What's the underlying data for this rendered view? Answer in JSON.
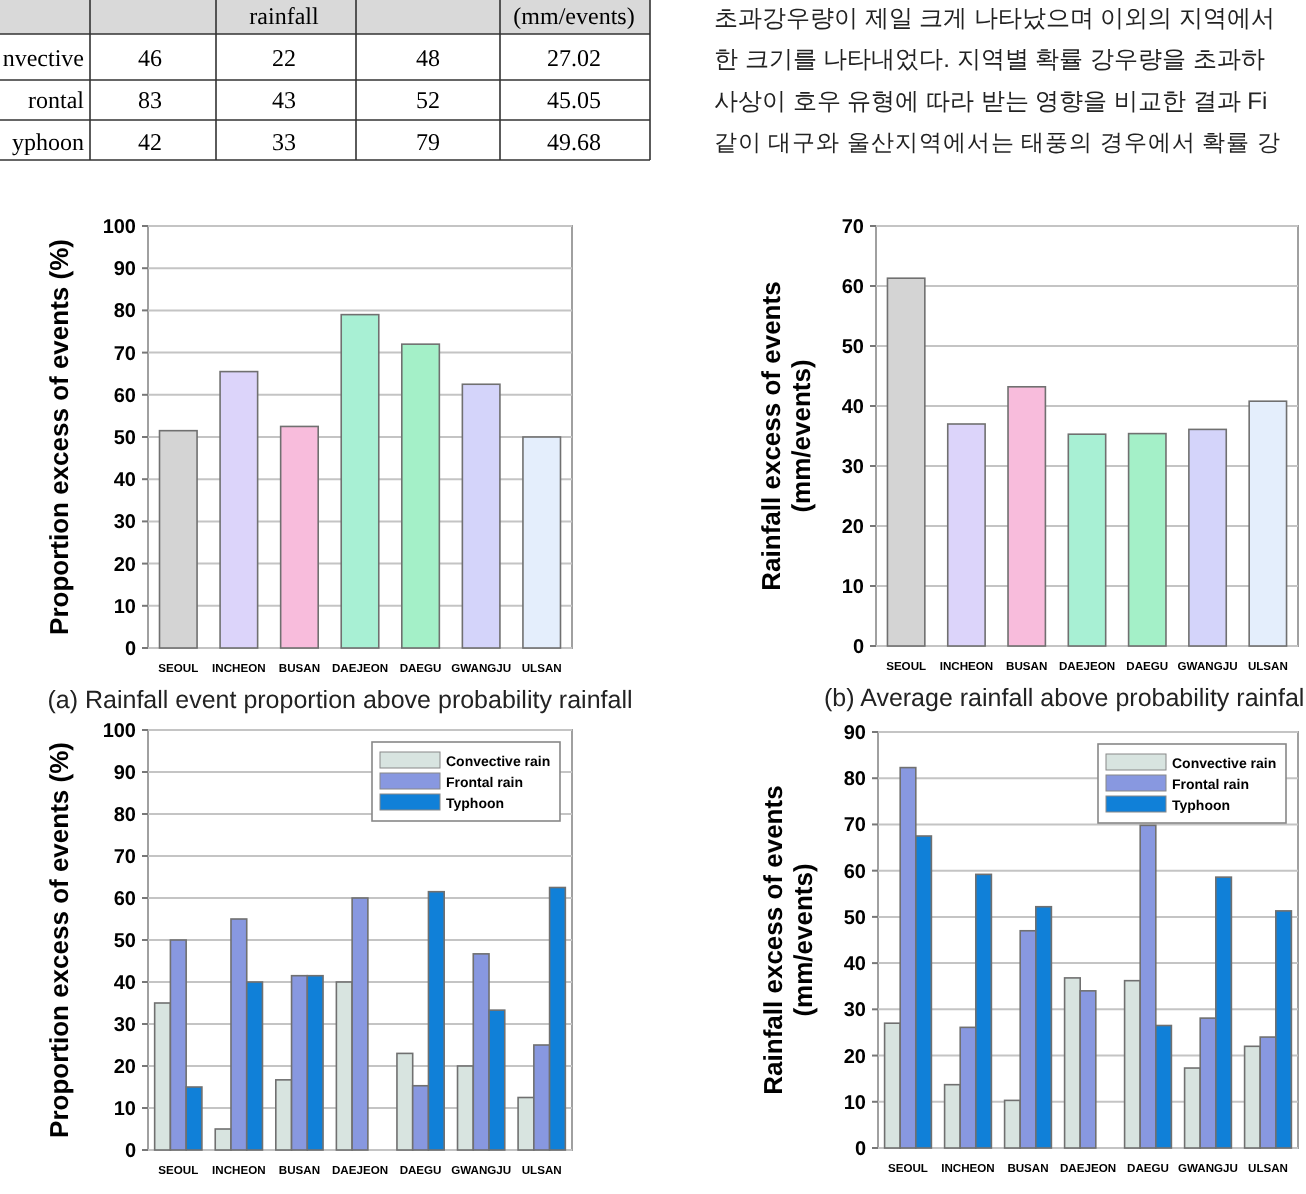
{
  "chart_data": [
    {
      "type": "other",
      "annotations": [
        "rainfall",
        "(mm/events)",
        "nvective",
        "46",
        "22",
        "48",
        "27.02",
        "rontal",
        "83",
        "43",
        "52",
        "45.05",
        "yphoon",
        "42",
        "33",
        "79",
        "49.68"
      ]
    },
    {
      "type": "other",
      "annotations": [
        "초과강우량이 제일 크게 나타났으며 이외의 지역에서",
        "한 크기를 나타내었다. 지역별 확률 강우량을 초과하",
        "사상이 호우 유형에 따라 받는 영향을 비교한 결과 Fi",
        "같이 대구와 울산지역에서는 태풍의 경우에서 확률 강"
      ]
    },
    {
      "type": "bar",
      "title": "(a) Rainfall event proportion above probability rainfall",
      "ylabel": "Proportion excess of events (%)",
      "categories": [
        "SEOUL",
        "INCHEON",
        "BUSAN",
        "DAEJEON",
        "DAEGU",
        "GWANGJU",
        "ULSAN"
      ],
      "values": [
        51.5,
        65.5,
        52.5,
        79,
        72,
        62.5,
        50
      ],
      "colors": [
        "#d4d4d4",
        "#dcd4fa",
        "#f8bcdc",
        "#a8f0d4",
        "#a4f0c8",
        "#d4d4fa",
        "#e4eefc"
      ],
      "ylim": [
        0,
        100
      ],
      "yticks": [
        0,
        10,
        20,
        30,
        40,
        50,
        60,
        70,
        80,
        90,
        100
      ],
      "grid": "y"
    },
    {
      "type": "bar",
      "title": "(b) Average rainfall above probability rainfall",
      "ylabel": "Rainfall excess of events\n(mm/events)",
      "categories": [
        "SEOUL",
        "INCHEON",
        "BUSAN",
        "DAEJEON",
        "DAEGU",
        "GWANGJU",
        "ULSAN"
      ],
      "values": [
        61.3,
        37,
        43.2,
        35.3,
        35.4,
        36.1,
        40.8
      ],
      "colors": [
        "#d4d4d4",
        "#dcd4fa",
        "#f8bcdc",
        "#a8f0d4",
        "#a4f0c8",
        "#d4d4fa",
        "#e4eefc"
      ],
      "ylim": [
        0,
        70
      ],
      "yticks": [
        0,
        10,
        20,
        30,
        40,
        50,
        60,
        70
      ],
      "grid": "y"
    },
    {
      "type": "bar",
      "ylabel": "Proportion excess of events (%)",
      "categories": [
        "SEOUL",
        "INCHEON",
        "BUSAN",
        "DAEJEON",
        "DAEGU",
        "GWANGJU",
        "ULSAN"
      ],
      "series": [
        {
          "name": "Convective rain",
          "color": "#d8e4e0",
          "values": [
            35,
            5,
            16.7,
            40,
            23,
            20,
            12.5
          ]
        },
        {
          "name": "Frontal rain",
          "color": "#8898e0",
          "values": [
            50,
            55,
            41.5,
            60,
            15.3,
            46.7,
            25
          ]
        },
        {
          "name": "Typhoon",
          "color": "#1080d8",
          "values": [
            15,
            40,
            41.5,
            null,
            61.5,
            33.3,
            62.5
          ]
        }
      ],
      "ylim": [
        0,
        100
      ],
      "yticks": [
        0,
        10,
        20,
        30,
        40,
        50,
        60,
        70,
        80,
        90,
        100
      ],
      "grid": "y",
      "legend": "top right"
    },
    {
      "type": "bar",
      "ylabel": "Rainfall excess of events\n(mm/events)",
      "categories": [
        "SEOUL",
        "INCHEON",
        "BUSAN",
        "DAEJEON",
        "DAEGU",
        "GWANGJU",
        "ULSAN"
      ],
      "series": [
        {
          "name": "Convective rain",
          "color": "#d8e4e0",
          "values": [
            27,
            13.7,
            10.3,
            36.8,
            36.2,
            17.3,
            22
          ]
        },
        {
          "name": "Frontal rain",
          "color": "#8898e0",
          "values": [
            82.3,
            26.1,
            47,
            34,
            69.8,
            28.1,
            24
          ]
        },
        {
          "name": "Typhoon",
          "color": "#1080d8",
          "values": [
            67.5,
            59.2,
            52.2,
            null,
            26.5,
            58.6,
            51.3
          ]
        }
      ],
      "ylim": [
        0,
        90
      ],
      "yticks": [
        0,
        10,
        20,
        30,
        40,
        50,
        60,
        70,
        80,
        90
      ],
      "grid": "y",
      "legend": "top right"
    }
  ]
}
